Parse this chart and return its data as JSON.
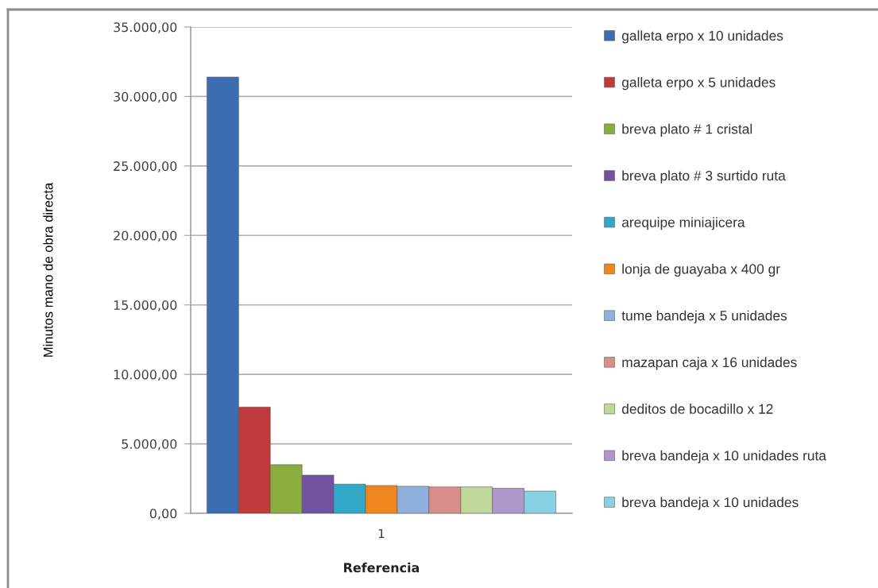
{
  "chart_data": {
    "type": "bar",
    "xlabel": "Referencia",
    "ylabel": "Minutos mano de obra directa",
    "categories": [
      "1"
    ],
    "series": [
      {
        "name": "galleta erpo x 10 unidades",
        "color": "#3b6db0",
        "values": [
          31400
        ]
      },
      {
        "name": "galleta erpo x 5 unidades",
        "color": "#c0393b",
        "values": [
          7650
        ]
      },
      {
        "name": "breva plato # 1 cristal",
        "color": "#8aad3d",
        "values": [
          3500
        ]
      },
      {
        "name": "breva plato # 3 surtido ruta",
        "color": "#7152a0",
        "values": [
          2750
        ]
      },
      {
        "name": "arequipe miniajicera",
        "color": "#31a8c8",
        "values": [
          2100
        ]
      },
      {
        "name": "lonja de guayaba x 400 gr",
        "color": "#f0861e",
        "values": [
          2000
        ]
      },
      {
        "name": "tume bandeja x 5 unidades",
        "color": "#8fb0dc",
        "values": [
          1950
        ]
      },
      {
        "name": "mazapan caja x 16 unidades",
        "color": "#d98e8c",
        "values": [
          1900
        ]
      },
      {
        "name": "deditos de bocadillo x 12",
        "color": "#c0d89a",
        "values": [
          1900
        ]
      },
      {
        "name": "breva bandeja x 10 unidades ruta",
        "color": "#ad98cc",
        "values": [
          1800
        ]
      },
      {
        "name": "breva bandeja x 10 unidades",
        "color": "#88d0e4",
        "values": [
          1600
        ]
      }
    ],
    "ylim": [
      0,
      35000
    ],
    "yticks": [
      {
        "value": 0,
        "label": "0,00"
      },
      {
        "value": 5000,
        "label": "5.000,00"
      },
      {
        "value": 10000,
        "label": "10.000,00"
      },
      {
        "value": 15000,
        "label": "15.000,00"
      },
      {
        "value": 20000,
        "label": "20.000,00"
      },
      {
        "value": 25000,
        "label": "25.000,00"
      },
      {
        "value": 30000,
        "label": "30.000,00"
      },
      {
        "value": 35000,
        "label": "35.000,00"
      }
    ],
    "grid": "y",
    "legend": "right"
  }
}
